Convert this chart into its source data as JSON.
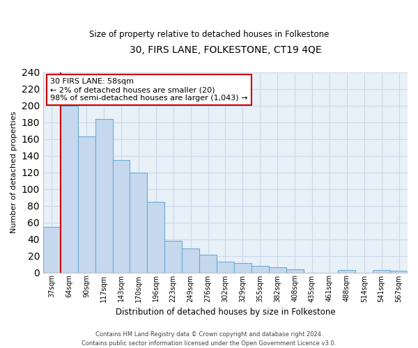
{
  "title": "30, FIRS LANE, FOLKESTONE, CT19 4QE",
  "subtitle": "Size of property relative to detached houses in Folkestone",
  "xlabel": "Distribution of detached houses by size in Folkestone",
  "ylabel": "Number of detached properties",
  "bin_labels": [
    "37sqm",
    "64sqm",
    "90sqm",
    "117sqm",
    "143sqm",
    "170sqm",
    "196sqm",
    "223sqm",
    "249sqm",
    "276sqm",
    "302sqm",
    "329sqm",
    "355sqm",
    "382sqm",
    "408sqm",
    "435sqm",
    "461sqm",
    "488sqm",
    "514sqm",
    "541sqm",
    "567sqm"
  ],
  "bar_values": [
    55,
    200,
    163,
    184,
    135,
    120,
    85,
    38,
    29,
    21,
    13,
    11,
    8,
    6,
    4,
    0,
    0,
    3,
    0,
    3,
    2
  ],
  "bar_color": "#c5d8ee",
  "bar_edge_color": "#6aabd2",
  "highlight_color": "#cc0000",
  "annotation_text": "30 FIRS LANE: 58sqm\n← 2% of detached houses are smaller (20)\n98% of semi-detached houses are larger (1,043) →",
  "annotation_box_color": "#ffffff",
  "annotation_box_edge_color": "#cc0000",
  "ylim": [
    0,
    240
  ],
  "yticks": [
    0,
    20,
    40,
    60,
    80,
    100,
    120,
    140,
    160,
    180,
    200,
    220,
    240
  ],
  "footer_line1": "Contains HM Land Registry data © Crown copyright and database right 2024.",
  "footer_line2": "Contains public sector information licensed under the Open Government Licence v3.0.",
  "bg_color": "#ffffff",
  "grid_color": "#ccd8ea",
  "plot_bg_color": "#e8f0f8"
}
